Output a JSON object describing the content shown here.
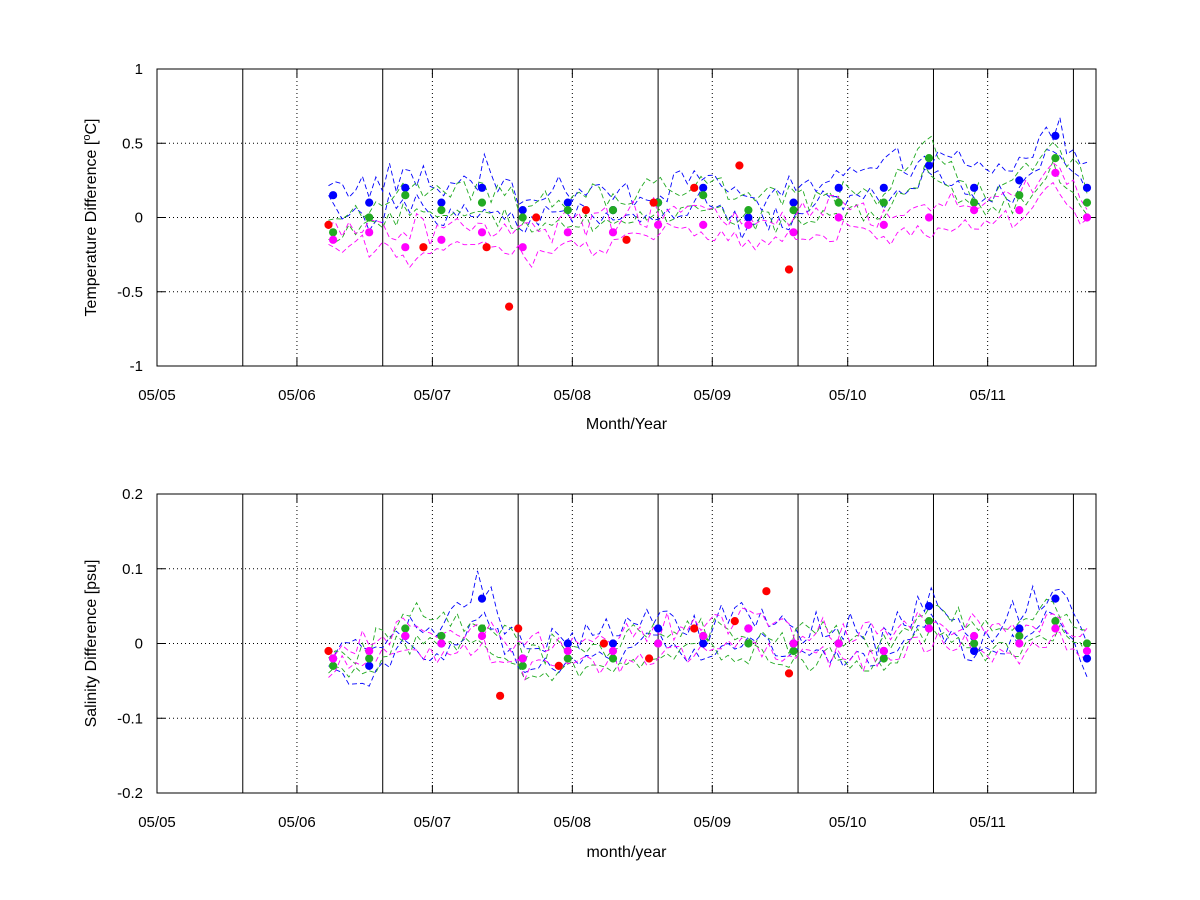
{
  "chart_data": [
    {
      "type": "line",
      "ylabel": "Temperature Difference [",
      "ylabel_sup": "o",
      "ylabel_tail": "C]",
      "xlabel": "Month/Year",
      "ylim": [
        -1,
        1
      ],
      "yticks": [
        -1,
        -0.5,
        0,
        0.5,
        1
      ],
      "ytick_labels": [
        "-1",
        "-0.5",
        "0",
        "0.5",
        "1"
      ],
      "xlim": [
        "2005-05-01",
        "2005-11-25"
      ],
      "xticks": [
        "2005-05-01",
        "2005-06-01",
        "2005-07-01",
        "2005-08-01",
        "2005-09-01",
        "2005-10-01",
        "2005-11-01"
      ],
      "xtick_labels": [
        "05/05",
        "05/06",
        "05/07",
        "05/08",
        "05/09",
        "05/10",
        "05/11"
      ],
      "solid_vlines": [
        "2005-05-20",
        "2005-06-20",
        "2005-07-20",
        "2005-08-20",
        "2005-09-20",
        "2005-10-20",
        "2005-11-20"
      ],
      "grid": "dotted",
      "colors": {
        "blue": "#0000ff",
        "green": "#22aa22",
        "magenta": "#ff00ff",
        "red": "#ff0000",
        "darkred": "#8b0000"
      },
      "series": [
        {
          "color": "blue",
          "style": "markers",
          "x": [
            "2005-06-09",
            "2005-06-17",
            "2005-06-25",
            "2005-07-03",
            "2005-07-12",
            "2005-07-21",
            "2005-07-31",
            "2005-08-10",
            "2005-08-20",
            "2005-08-30",
            "2005-09-09",
            "2005-09-19",
            "2005-09-29",
            "2005-10-09",
            "2005-10-19",
            "2005-10-29",
            "2005-11-08",
            "2005-11-16",
            "2005-11-23"
          ],
          "y": [
            0.15,
            0.1,
            0.2,
            0.1,
            0.2,
            0.05,
            0.1,
            0.05,
            0.1,
            0.2,
            0.0,
            0.1,
            0.2,
            0.2,
            0.35,
            0.2,
            0.25,
            0.55,
            0.2
          ]
        },
        {
          "color": "green",
          "style": "markers",
          "x": [
            "2005-06-09",
            "2005-06-17",
            "2005-06-25",
            "2005-07-03",
            "2005-07-12",
            "2005-07-21",
            "2005-07-31",
            "2005-08-10",
            "2005-08-20",
            "2005-08-30",
            "2005-09-09",
            "2005-09-19",
            "2005-09-29",
            "2005-10-09",
            "2005-10-19",
            "2005-10-29",
            "2005-11-08",
            "2005-11-16",
            "2005-11-23"
          ],
          "y": [
            -0.1,
            0.0,
            0.15,
            0.05,
            0.1,
            0.0,
            0.05,
            0.05,
            0.1,
            0.15,
            0.05,
            0.05,
            0.1,
            0.1,
            0.4,
            0.1,
            0.15,
            0.4,
            0.1
          ]
        },
        {
          "color": "magenta",
          "style": "markers",
          "x": [
            "2005-06-09",
            "2005-06-17",
            "2005-06-25",
            "2005-07-03",
            "2005-07-12",
            "2005-07-21",
            "2005-07-31",
            "2005-08-10",
            "2005-08-20",
            "2005-08-30",
            "2005-09-09",
            "2005-09-19",
            "2005-09-29",
            "2005-10-09",
            "2005-10-19",
            "2005-10-29",
            "2005-11-08",
            "2005-11-16",
            "2005-11-23"
          ],
          "y": [
            -0.15,
            -0.1,
            -0.2,
            -0.15,
            -0.1,
            -0.2,
            -0.1,
            -0.1,
            -0.05,
            -0.05,
            -0.05,
            -0.1,
            0.0,
            -0.05,
            0.0,
            0.05,
            0.05,
            0.3,
            0.0
          ]
        },
        {
          "color": "red",
          "style": "markers",
          "x": [
            "2005-06-08",
            "2005-06-29",
            "2005-07-13",
            "2005-07-18",
            "2005-07-24",
            "2005-08-04",
            "2005-08-13",
            "2005-08-19",
            "2005-08-28",
            "2005-09-07",
            "2005-09-18"
          ],
          "y": [
            -0.05,
            -0.2,
            -0.2,
            -0.6,
            0.0,
            0.05,
            -0.15,
            0.1,
            0.2,
            0.35,
            -0.35
          ]
        }
      ]
    },
    {
      "type": "line",
      "ylabel": "Salinity Difference [psu]",
      "xlabel": "month/year",
      "ylim": [
        -0.2,
        0.2
      ],
      "yticks": [
        -0.2,
        -0.1,
        0,
        0.1,
        0.2
      ],
      "ytick_labels": [
        "-0.2",
        "-0.1",
        "0",
        "0.1",
        "0.2"
      ],
      "xlim": [
        "2005-05-01",
        "2005-11-25"
      ],
      "xticks": [
        "2005-05-01",
        "2005-06-01",
        "2005-07-01",
        "2005-08-01",
        "2005-09-01",
        "2005-10-01",
        "2005-11-01"
      ],
      "xtick_labels": [
        "05/05",
        "05/06",
        "05/07",
        "05/08",
        "05/09",
        "05/10",
        "05/11"
      ],
      "solid_vlines": [
        "2005-05-20",
        "2005-06-20",
        "2005-07-20",
        "2005-08-20",
        "2005-09-20",
        "2005-10-20",
        "2005-11-20"
      ],
      "grid": "dotted",
      "colors": {
        "blue": "#0000ff",
        "green": "#22aa22",
        "magenta": "#ff00ff",
        "red": "#ff0000",
        "darkred": "#8b0000"
      },
      "series": [
        {
          "color": "blue",
          "style": "markers",
          "x": [
            "2005-06-09",
            "2005-06-17",
            "2005-06-25",
            "2005-07-03",
            "2005-07-12",
            "2005-07-21",
            "2005-07-31",
            "2005-08-10",
            "2005-08-20",
            "2005-08-30",
            "2005-09-09",
            "2005-09-19",
            "2005-09-29",
            "2005-10-09",
            "2005-10-19",
            "2005-10-29",
            "2005-11-08",
            "2005-11-16",
            "2005-11-23"
          ],
          "y": [
            -0.02,
            -0.03,
            0.01,
            0.0,
            0.06,
            -0.02,
            0.0,
            0.0,
            0.02,
            0.0,
            0.02,
            0.0,
            0.0,
            -0.01,
            0.05,
            -0.01,
            0.02,
            0.06,
            -0.02
          ]
        },
        {
          "color": "green",
          "style": "markers",
          "x": [
            "2005-06-09",
            "2005-06-17",
            "2005-06-25",
            "2005-07-03",
            "2005-07-12",
            "2005-07-21",
            "2005-07-31",
            "2005-08-10",
            "2005-08-20",
            "2005-08-30",
            "2005-09-09",
            "2005-09-19",
            "2005-09-29",
            "2005-10-09",
            "2005-10-19",
            "2005-10-29",
            "2005-11-08",
            "2005-11-16",
            "2005-11-23"
          ],
          "y": [
            -0.03,
            -0.02,
            0.02,
            0.01,
            0.02,
            -0.03,
            -0.02,
            -0.02,
            0.0,
            0.01,
            0.0,
            -0.01,
            0.0,
            -0.02,
            0.03,
            0.0,
            0.01,
            0.03,
            0.0
          ]
        },
        {
          "color": "magenta",
          "style": "markers",
          "x": [
            "2005-06-09",
            "2005-06-17",
            "2005-06-25",
            "2005-07-03",
            "2005-07-12",
            "2005-07-21",
            "2005-07-31",
            "2005-08-10",
            "2005-08-20",
            "2005-08-30",
            "2005-09-09",
            "2005-09-19",
            "2005-09-29",
            "2005-10-09",
            "2005-10-19",
            "2005-10-29",
            "2005-11-08",
            "2005-11-16",
            "2005-11-23"
          ],
          "y": [
            -0.02,
            -0.01,
            0.01,
            0.0,
            0.01,
            -0.02,
            -0.01,
            -0.01,
            0.0,
            0.01,
            0.02,
            0.0,
            0.0,
            -0.01,
            0.02,
            0.01,
            0.0,
            0.02,
            -0.01
          ]
        },
        {
          "color": "red",
          "style": "markers",
          "x": [
            "2005-06-08",
            "2005-07-16",
            "2005-07-20",
            "2005-07-29",
            "2005-08-08",
            "2005-08-18",
            "2005-08-28",
            "2005-09-06",
            "2005-09-13",
            "2005-09-18"
          ],
          "y": [
            -0.01,
            -0.07,
            0.02,
            -0.03,
            0.0,
            -0.02,
            0.02,
            0.03,
            0.07,
            -0.04
          ]
        }
      ]
    }
  ]
}
